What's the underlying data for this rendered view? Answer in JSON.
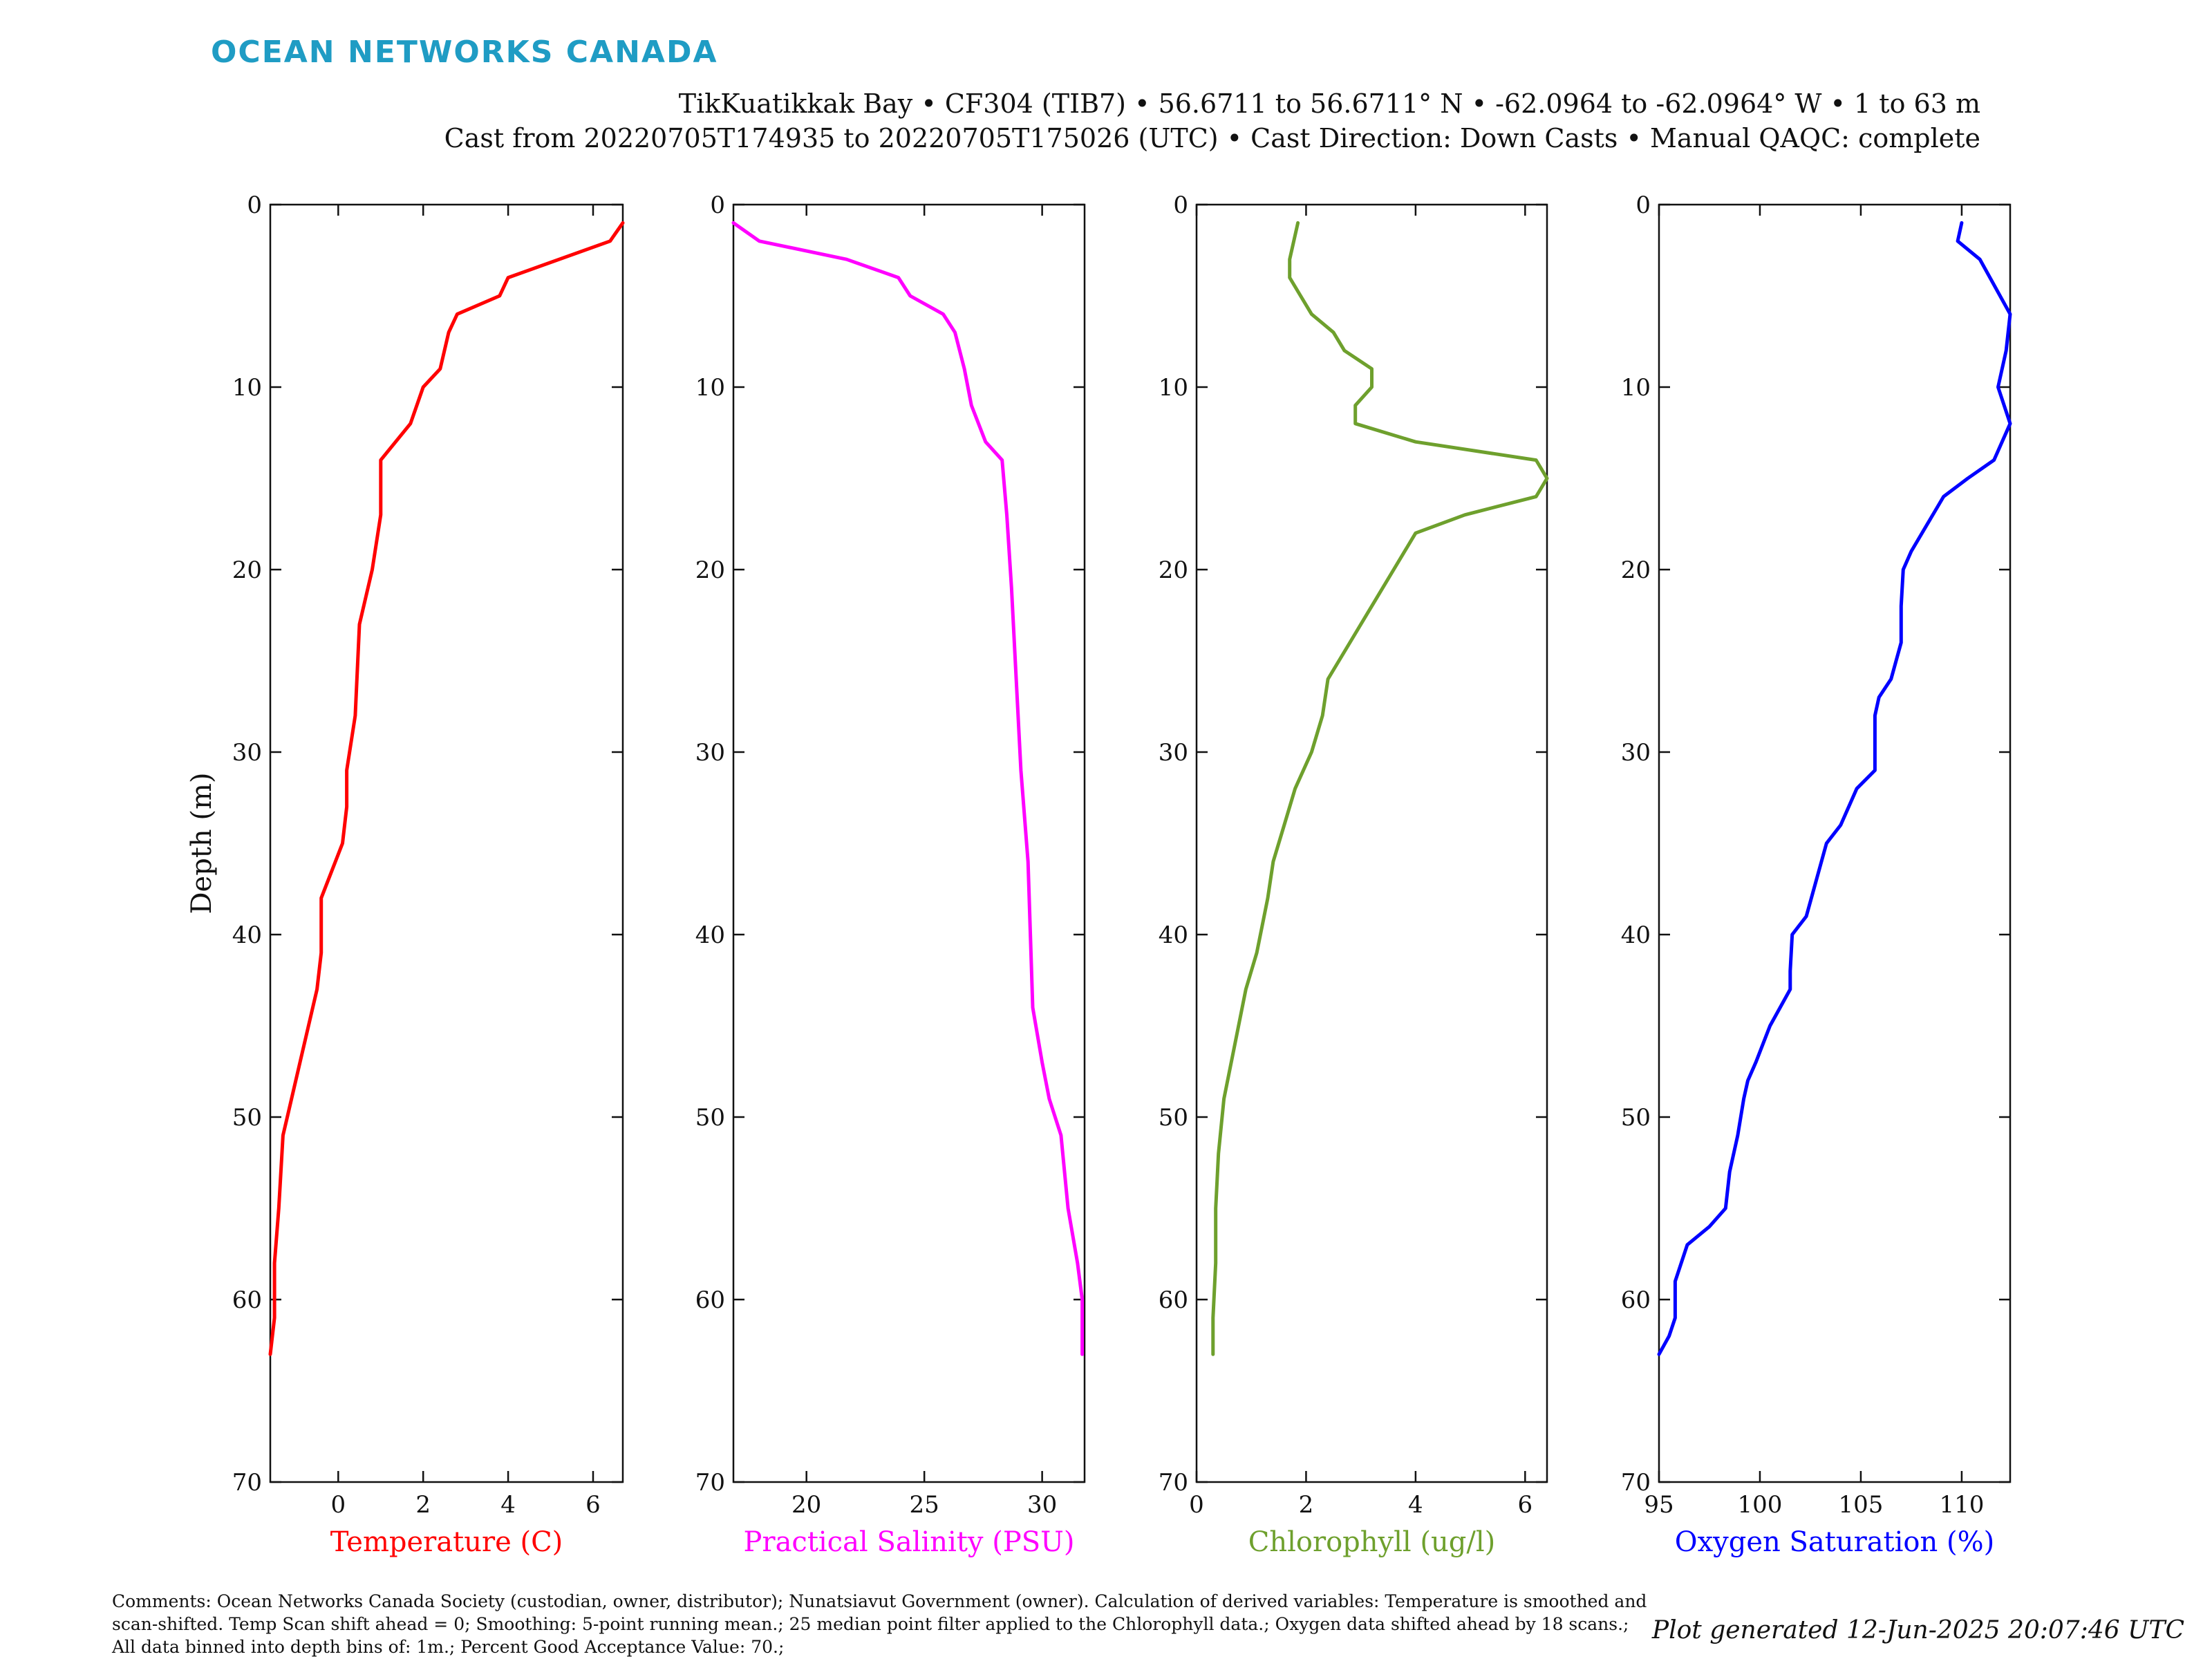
{
  "header": {
    "logo": "OCEAN NETWORKS CANADA",
    "line1": "TikKuatikkak Bay • CF304 (TIB7) • 56.6711 to 56.6711° N • -62.0964 to -62.0964° W • 1 to 63 m",
    "line2": "Cast from 20220705T174935 to 20220705T175026 (UTC) • Cast Direction: Down Casts • Manual QAQC: complete"
  },
  "footer": {
    "comments": "Comments: Ocean Networks Canada Society (custodian, owner, distributor); Nunatsiavut Government (owner). Calculation of derived variables: Temperature is smoothed and scan-shifted. Temp Scan shift ahead = 0; Smoothing: 5-point running mean.; 25 median point filter applied to the Chlorophyll data.; Oxygen data shifted ahead by 18 scans.; All data binned into depth bins of: 1m.; Percent Good Acceptance Value: 70.;",
    "generated": "Plot generated 12-Jun-2025 20:07:46 UTC"
  },
  "colors": {
    "logo": "#1f9cc4",
    "axis": "#111111"
  },
  "chart_data": [
    {
      "type": "line",
      "ylabel": "Depth (m)",
      "ylim": [
        0,
        70
      ],
      "y_reversed": true,
      "yticks": [
        0,
        10,
        20,
        30,
        40,
        50,
        60,
        70
      ],
      "xlabel": "Temperature (C)",
      "xlim": [
        -1.6,
        6.7
      ],
      "xticks": [
        0,
        2,
        4,
        6
      ],
      "color": "#ff0000",
      "series": [
        {
          "points": [
            [
              6.7,
              1
            ],
            [
              6.4,
              2
            ],
            [
              4.0,
              4
            ],
            [
              3.8,
              5
            ],
            [
              2.8,
              6
            ],
            [
              2.6,
              7
            ],
            [
              2.4,
              9
            ],
            [
              2.0,
              10
            ],
            [
              1.7,
              12
            ],
            [
              1.0,
              14
            ],
            [
              1.0,
              17
            ],
            [
              0.8,
              20
            ],
            [
              0.5,
              23
            ],
            [
              0.4,
              28
            ],
            [
              0.2,
              31
            ],
            [
              0.2,
              33
            ],
            [
              0.1,
              35
            ],
            [
              -0.4,
              38
            ],
            [
              -0.4,
              41
            ],
            [
              -0.5,
              43
            ],
            [
              -0.9,
              47
            ],
            [
              -1.2,
              50
            ],
            [
              -1.3,
              51
            ],
            [
              -1.4,
              55
            ],
            [
              -1.5,
              58
            ],
            [
              -1.5,
              61
            ],
            [
              -1.6,
              63
            ]
          ]
        }
      ]
    },
    {
      "type": "line",
      "ylabel": "",
      "ylim": [
        0,
        70
      ],
      "y_reversed": true,
      "yticks": [
        0,
        10,
        20,
        30,
        40,
        50,
        60,
        70
      ],
      "xlabel": "Practical Salinity (PSU)",
      "xlim": [
        16.9,
        31.8
      ],
      "xticks": [
        20,
        25,
        30
      ],
      "color": "#ff00ff",
      "series": [
        {
          "points": [
            [
              16.9,
              1
            ],
            [
              18.0,
              2
            ],
            [
              21.7,
              3
            ],
            [
              23.9,
              4
            ],
            [
              24.4,
              5
            ],
            [
              25.8,
              6
            ],
            [
              26.3,
              7
            ],
            [
              26.7,
              9
            ],
            [
              27.0,
              11
            ],
            [
              27.6,
              13
            ],
            [
              28.3,
              14
            ],
            [
              28.5,
              17
            ],
            [
              28.7,
              21
            ],
            [
              28.9,
              26
            ],
            [
              29.1,
              31
            ],
            [
              29.4,
              36
            ],
            [
              29.5,
              40
            ],
            [
              29.6,
              44
            ],
            [
              30.0,
              47
            ],
            [
              30.3,
              49
            ],
            [
              30.8,
              51
            ],
            [
              31.1,
              55
            ],
            [
              31.5,
              58
            ],
            [
              31.7,
              60
            ],
            [
              31.7,
              63
            ]
          ]
        }
      ]
    },
    {
      "type": "line",
      "ylabel": "",
      "ylim": [
        0,
        70
      ],
      "y_reversed": true,
      "yticks": [
        0,
        10,
        20,
        30,
        40,
        50,
        60,
        70
      ],
      "xlabel": "Chlorophyll (ug/l)",
      "xlim": [
        0,
        6.4
      ],
      "xticks": [
        0,
        2,
        4,
        6
      ],
      "color": "#6ea02d",
      "series": [
        {
          "points": [
            [
              1.85,
              1
            ],
            [
              1.7,
              3
            ],
            [
              1.7,
              4
            ],
            [
              1.9,
              5
            ],
            [
              2.1,
              6
            ],
            [
              2.5,
              7
            ],
            [
              2.7,
              8
            ],
            [
              3.2,
              9
            ],
            [
              3.2,
              10
            ],
            [
              2.9,
              11
            ],
            [
              2.9,
              12
            ],
            [
              4.0,
              13
            ],
            [
              6.2,
              14
            ],
            [
              6.4,
              15
            ],
            [
              6.2,
              16
            ],
            [
              4.9,
              17
            ],
            [
              4.0,
              18
            ],
            [
              3.6,
              20
            ],
            [
              3.2,
              22
            ],
            [
              2.8,
              24
            ],
            [
              2.4,
              26
            ],
            [
              2.3,
              28
            ],
            [
              2.1,
              30
            ],
            [
              1.8,
              32
            ],
            [
              1.6,
              34
            ],
            [
              1.4,
              36
            ],
            [
              1.3,
              38
            ],
            [
              1.1,
              41
            ],
            [
              0.9,
              43
            ],
            [
              0.7,
              46
            ],
            [
              0.5,
              49
            ],
            [
              0.4,
              52
            ],
            [
              0.35,
              55
            ],
            [
              0.35,
              58
            ],
            [
              0.3,
              61
            ],
            [
              0.3,
              63
            ]
          ]
        }
      ]
    },
    {
      "type": "line",
      "ylabel": "",
      "ylim": [
        0,
        70
      ],
      "y_reversed": true,
      "yticks": [
        0,
        10,
        20,
        30,
        40,
        50,
        60,
        70
      ],
      "xlabel": "Oxygen Saturation (%)",
      "xlim": [
        95,
        112.4
      ],
      "xticks": [
        95,
        100,
        105,
        110
      ],
      "color": "#0000ff",
      "series": [
        {
          "points": [
            [
              110.0,
              1
            ],
            [
              109.8,
              2
            ],
            [
              110.9,
              3
            ],
            [
              112.4,
              6
            ],
            [
              112.2,
              8
            ],
            [
              111.8,
              10
            ],
            [
              112.4,
              12
            ],
            [
              111.6,
              14
            ],
            [
              110.3,
              15
            ],
            [
              109.1,
              16
            ],
            [
              107.5,
              19
            ],
            [
              107.1,
              20
            ],
            [
              107.0,
              22
            ],
            [
              107.0,
              24
            ],
            [
              106.5,
              26
            ],
            [
              105.9,
              27
            ],
            [
              105.7,
              28
            ],
            [
              105.7,
              31
            ],
            [
              104.8,
              32
            ],
            [
              104.0,
              34
            ],
            [
              103.3,
              35
            ],
            [
              102.8,
              37
            ],
            [
              102.3,
              39
            ],
            [
              101.6,
              40
            ],
            [
              101.5,
              42
            ],
            [
              101.5,
              43
            ],
            [
              100.5,
              45
            ],
            [
              99.8,
              47
            ],
            [
              99.4,
              48
            ],
            [
              99.2,
              49
            ],
            [
              98.9,
              51
            ],
            [
              98.5,
              53
            ],
            [
              98.3,
              55
            ],
            [
              97.5,
              56
            ],
            [
              96.4,
              57
            ],
            [
              95.8,
              59
            ],
            [
              95.8,
              61
            ],
            [
              95.5,
              62
            ],
            [
              95.0,
              63
            ]
          ]
        }
      ]
    }
  ]
}
